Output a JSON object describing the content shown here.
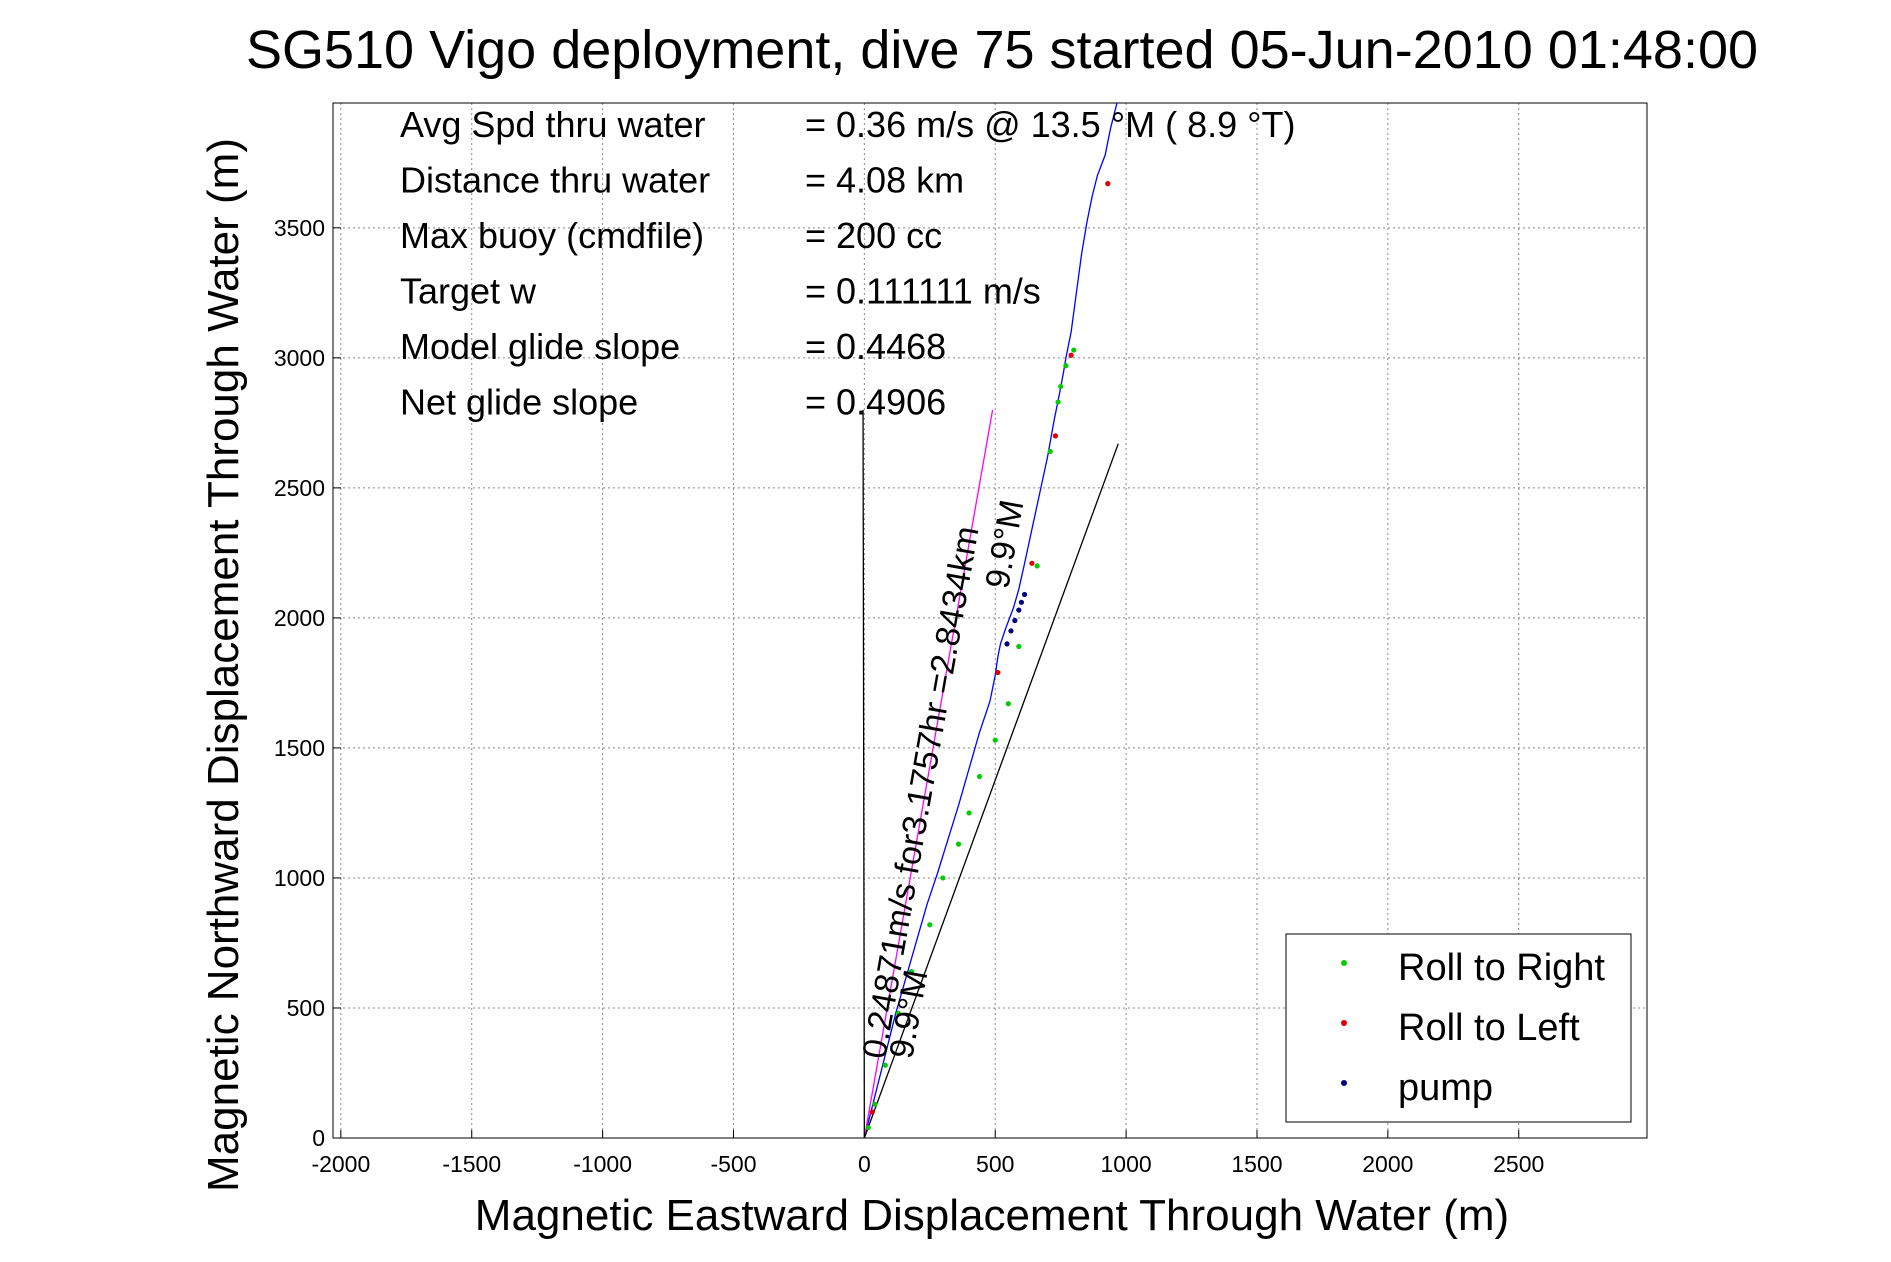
{
  "chart_data": {
    "type": "scatter",
    "title": "SG510 Vigo deployment, dive 75 started 05-Jun-2010 01:48:00",
    "xlabel": "Magnetic Eastward Displacement Through Water (m)",
    "ylabel": "Magnetic Northward Displacement Through Water (m)",
    "xlim": [
      -2030,
      2990
    ],
    "ylim": [
      0,
      3980
    ],
    "xticks": [
      -2000,
      -1500,
      -1000,
      -500,
      0,
      500,
      1000,
      1500,
      2000,
      2500
    ],
    "yticks": [
      0,
      500,
      1000,
      1500,
      2000,
      2500,
      3000,
      3500
    ],
    "grid": true,
    "legend_position": "bottom-right",
    "stats": [
      {
        "label": "Avg Spd thru water",
        "value": "=  0.36 m/s @  13.5 °M (  8.9 °T)"
      },
      {
        "label": "Distance thru water",
        "value": "=  4.08 km"
      },
      {
        "label": "Max buoy (cmdfile)",
        "value": "= 200 cc"
      },
      {
        "label": "Target w",
        "value": "= 0.111111 m/s"
      },
      {
        "label": "Model glide slope",
        "value": "= 0.4468"
      },
      {
        "label": "Net glide slope",
        "value": "= 0.4906"
      }
    ],
    "annotations": [
      {
        "text": "0.24871m/s for3.1757hr =2.8434km",
        "color": "#000000"
      },
      {
        "text": "9.9°M",
        "color": "#000000"
      },
      {
        "text": "9.9°M",
        "color": "#000000"
      }
    ],
    "lines": [
      {
        "name": "track",
        "color": "#0000ff",
        "x": [
          0,
          20,
          50,
          80,
          120,
          160,
          200,
          240,
          280,
          320,
          360,
          400,
          440,
          480,
          500,
          510,
          520,
          540,
          570,
          590,
          610,
          640,
          670,
          700,
          725,
          745,
          760,
          770,
          790,
          810,
          830,
          850,
          870,
          890,
          920,
          940,
          965
        ],
        "y": [
          0,
          80,
          200,
          320,
          480,
          620,
          760,
          900,
          1020,
          1150,
          1280,
          1420,
          1560,
          1680,
          1780,
          1850,
          1900,
          1960,
          2040,
          2110,
          2200,
          2340,
          2480,
          2620,
          2760,
          2860,
          2940,
          3000,
          3100,
          3250,
          3400,
          3520,
          3620,
          3700,
          3780,
          3880,
          3980
        ]
      },
      {
        "name": "current",
        "color": "#ff00ff",
        "x": [
          0,
          490
        ],
        "y": [
          0,
          2800
        ]
      },
      {
        "name": "heading",
        "color": "#000000",
        "x": [
          0,
          970
        ],
        "y": [
          0,
          2670
        ]
      },
      {
        "name": "reference",
        "color": "#000000",
        "x": [
          0,
          -5
        ],
        "y": [
          0,
          2800
        ]
      }
    ],
    "series": [
      {
        "name": "Roll to Right",
        "color": "#00cc00",
        "x": [
          15,
          40,
          80,
          130,
          180,
          250,
          300,
          360,
          400,
          440,
          500,
          550,
          590,
          660,
          710,
          740,
          750,
          770,
          800
        ],
        "y": [
          40,
          130,
          280,
          480,
          640,
          820,
          1000,
          1130,
          1250,
          1390,
          1530,
          1670,
          1890,
          2200,
          2640,
          2830,
          2890,
          2970,
          3030
        ]
      },
      {
        "name": "Roll to Left",
        "color": "#dd0000",
        "x": [
          30,
          510,
          640,
          730,
          790,
          930
        ],
        "y": [
          100,
          1790,
          2210,
          2700,
          3010,
          3670
        ]
      },
      {
        "name": "pump",
        "color": "#000080",
        "x": [
          545,
          560,
          575,
          590,
          600,
          612
        ],
        "y": [
          1900,
          1950,
          1990,
          2030,
          2060,
          2090
        ]
      }
    ]
  }
}
